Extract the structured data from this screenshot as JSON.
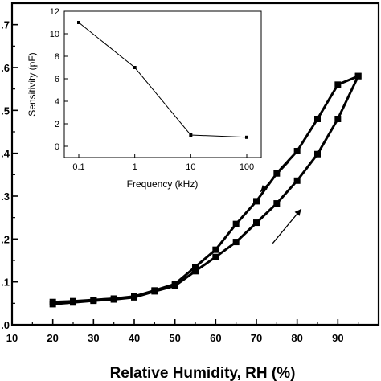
{
  "chart_data": [
    {
      "type": "line",
      "xlabel": "Relative Humidity, RH (%)",
      "ylabel": "",
      "xlim": [
        10,
        100
      ],
      "ylim": [
        0.0,
        0.75
      ],
      "x_ticks": [
        "10",
        "20",
        "30",
        "40",
        "50",
        "60",
        "70",
        "80",
        "90"
      ],
      "y_ticks": [
        ".0",
        ".1",
        ".2",
        ".3",
        ".4",
        ".5",
        ".6",
        ".7"
      ],
      "grid": false,
      "legend": "none",
      "series": [
        {
          "x": [
            20,
            25,
            30,
            35,
            40,
            45,
            50,
            55,
            60,
            65,
            70,
            75,
            80,
            85,
            90,
            95
          ],
          "values": [
            0.048,
            0.052,
            0.056,
            0.059,
            0.064,
            0.078,
            0.091,
            0.125,
            0.158,
            0.193,
            0.238,
            0.283,
            0.336,
            0.398,
            0.48,
            0.58
          ]
        },
        {
          "x": [
            95,
            90,
            85,
            80,
            75,
            70,
            65,
            60,
            55,
            50,
            45,
            40,
            35,
            30,
            25,
            20
          ],
          "values": [
            0.58,
            0.56,
            0.48,
            0.405,
            0.353,
            0.288,
            0.235,
            0.175,
            0.135,
            0.095,
            0.08,
            0.066,
            0.061,
            0.058,
            0.055,
            0.053
          ]
        }
      ],
      "arrows": [
        {
          "direction": "down",
          "x_from": 78,
          "y_from": 0.38,
          "x_to": 71,
          "y_to": 0.31
        },
        {
          "direction": "up",
          "x_from": 74,
          "y_from": 0.19,
          "x_to": 81,
          "y_to": 0.27
        }
      ],
      "color": "#000000"
    },
    {
      "type": "line",
      "xlabel": "Frequency (kHz)",
      "ylabel": "Sensitivity (pF)",
      "xscale": "log",
      "xlim": [
        0.1,
        100
      ],
      "ylim": [
        -1,
        12
      ],
      "x_ticks": [
        "0.1",
        "1",
        "10",
        "100"
      ],
      "y_ticks": [
        "0",
        "2",
        "4",
        "6",
        "8",
        "10",
        "12"
      ],
      "x": [
        0.1,
        1,
        10,
        100
      ],
      "values": [
        11,
        7,
        1,
        0.8
      ],
      "color": "#000000"
    }
  ]
}
